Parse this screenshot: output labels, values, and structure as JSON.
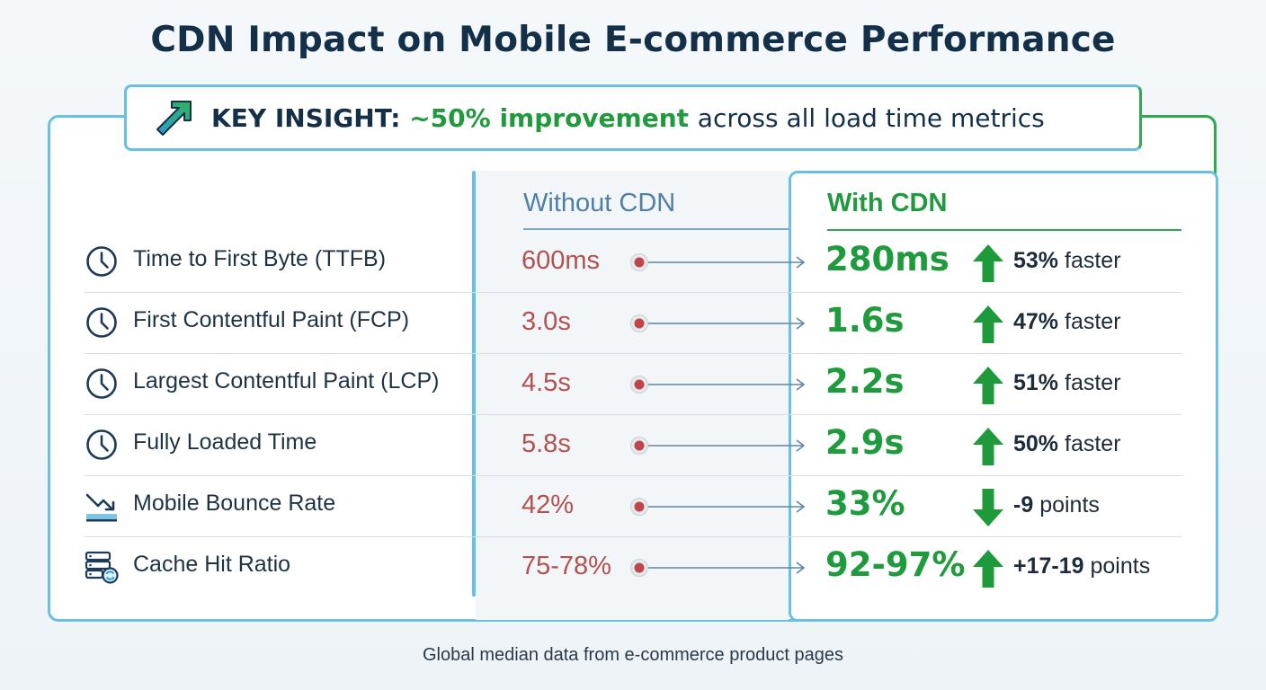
{
  "title": "CDN Impact on Mobile E-commerce Performance",
  "insight": {
    "icon": "trend-up-arrow-icon",
    "lead": "KEY INSIGHT:",
    "highlight": "~50% improvement",
    "rest": "across all load time metrics"
  },
  "columns": {
    "without": "Without CDN",
    "with": "With CDN"
  },
  "footer": "Global median data from e-commerce product pages",
  "colors": {
    "accent_blue": "#69c0e2",
    "accent_green": "#1f9a3c",
    "before_red": "#b4504f",
    "arrow_green": "#1e9a3a"
  },
  "chart_data": {
    "type": "table",
    "title": "CDN Impact on Mobile E-commerce Performance",
    "columns": [
      "",
      "Without CDN",
      "With CDN",
      ""
    ],
    "rows": [
      {
        "metric": "Time to First Byte (TTFB)",
        "icon": "clock-icon",
        "without": "600ms",
        "with": "280ms",
        "direction": "up",
        "change_value": "53%",
        "change_unit": "faster"
      },
      {
        "metric": "First Contentful Paint (FCP)",
        "icon": "clock-icon",
        "without": "3.0s",
        "with": "1.6s",
        "direction": "up",
        "change_value": "47%",
        "change_unit": "faster"
      },
      {
        "metric": "Largest Contentful Paint (LCP)",
        "icon": "clock-icon",
        "without": "4.5s",
        "with": "2.2s",
        "direction": "up",
        "change_value": "51%",
        "change_unit": "faster"
      },
      {
        "metric": "Fully Loaded Time",
        "icon": "clock-icon",
        "without": "5.8s",
        "with": "2.9s",
        "direction": "up",
        "change_value": "50%",
        "change_unit": "faster"
      },
      {
        "metric": "Mobile Bounce Rate",
        "icon": "trend-down-icon",
        "without": "42%",
        "with": "33%",
        "direction": "down",
        "change_value": "-9",
        "change_unit": "points"
      },
      {
        "metric": "Cache Hit Ratio",
        "icon": "server-refresh-icon",
        "without": "75-78%",
        "with": "92-97%",
        "direction": "up",
        "change_value": "+17-19",
        "change_unit": "points"
      }
    ]
  }
}
